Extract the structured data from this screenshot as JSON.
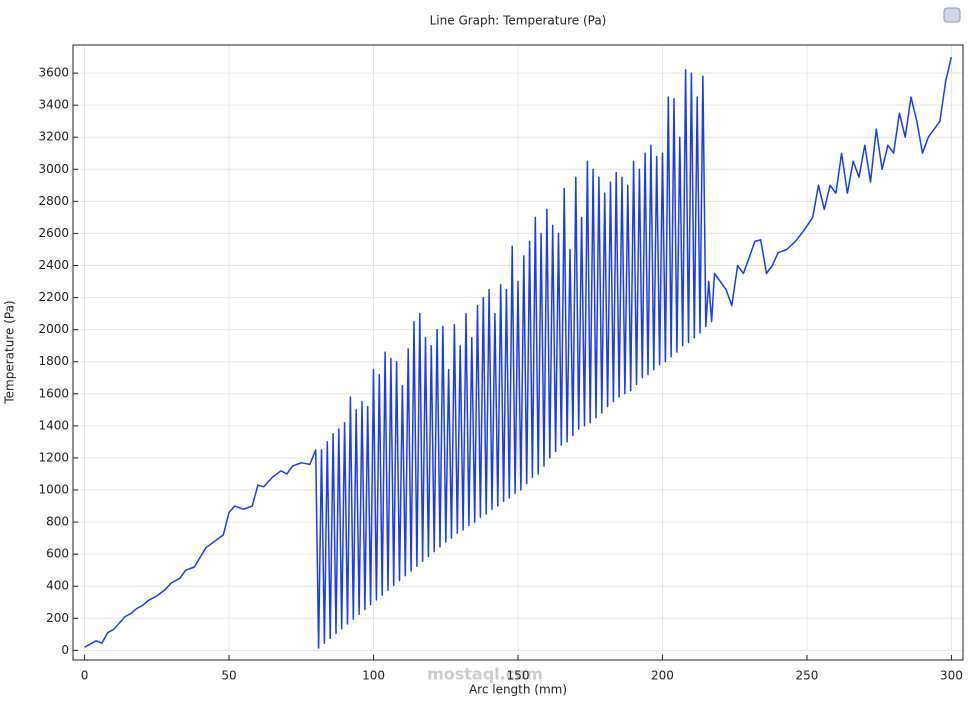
{
  "chart_data": {
    "type": "line",
    "title": "Line Graph: Temperature (Pa)",
    "x_label": "Arc length (mm)",
    "y_label": "Temperature (Pa)",
    "watermark": "mostaql.com",
    "xlim": [
      -4,
      304
    ],
    "ylim": [
      -60,
      3775
    ],
    "xticks": [
      0,
      50,
      100,
      150,
      200,
      250,
      300
    ],
    "yticks": [
      0,
      200,
      400,
      600,
      800,
      1000,
      1200,
      1400,
      1600,
      1800,
      2000,
      2200,
      2400,
      2600,
      2800,
      3000,
      3200,
      3400,
      3600
    ],
    "grid": true,
    "series": [
      {
        "color": "#1a3cf0",
        "x": [
          0,
          2,
          4,
          6,
          8,
          10,
          12,
          14,
          16,
          18,
          20,
          22,
          25,
          28,
          30,
          33,
          35,
          38,
          40,
          42,
          45,
          48,
          50,
          52,
          55,
          58,
          60,
          62,
          65,
          68,
          70,
          72,
          75,
          78,
          80,
          81,
          82,
          83,
          84,
          85,
          86,
          87,
          88,
          89,
          90,
          91,
          92,
          93,
          94,
          95,
          96,
          97,
          98,
          99,
          100,
          101,
          102,
          103,
          104,
          105,
          106,
          107,
          108,
          109,
          110,
          111,
          112,
          113,
          114,
          115,
          116,
          117,
          118,
          119,
          120,
          121,
          122,
          123,
          124,
          125,
          126,
          127,
          128,
          129,
          130,
          131,
          132,
          133,
          134,
          135,
          136,
          137,
          138,
          139,
          140,
          141,
          142,
          143,
          144,
          145,
          146,
          147,
          148,
          149,
          150,
          151,
          152,
          153,
          154,
          155,
          156,
          157,
          158,
          159,
          160,
          161,
          162,
          163,
          164,
          165,
          166,
          167,
          168,
          169,
          170,
          171,
          172,
          173,
          174,
          175,
          176,
          177,
          178,
          179,
          180,
          181,
          182,
          183,
          184,
          185,
          186,
          187,
          188,
          189,
          190,
          191,
          192,
          193,
          194,
          195,
          196,
          197,
          198,
          199,
          200,
          201,
          202,
          203,
          204,
          205,
          206,
          207,
          208,
          209,
          210,
          211,
          212,
          213,
          214,
          215,
          216,
          217,
          218,
          220,
          222,
          224,
          226,
          228,
          230,
          232,
          234,
          236,
          238,
          240,
          243,
          246,
          249,
          252,
          254,
          256,
          258,
          260,
          262,
          264,
          266,
          268,
          270,
          272,
          274,
          276,
          278,
          280,
          282,
          284,
          286,
          288,
          290,
          292,
          294,
          296,
          298,
          300
        ],
        "values": [
          20,
          40,
          60,
          45,
          110,
          130,
          170,
          210,
          230,
          260,
          280,
          310,
          340,
          380,
          420,
          450,
          500,
          520,
          580,
          640,
          680,
          720,
          860,
          900,
          880,
          900,
          1030,
          1020,
          1080,
          1120,
          1100,
          1150,
          1170,
          1160,
          1250,
          15,
          1250,
          45,
          1300,
          75,
          1350,
          105,
          1380,
          135,
          1420,
          165,
          1580,
          195,
          1500,
          225,
          1550,
          255,
          1520,
          285,
          1750,
          315,
          1720,
          345,
          1860,
          375,
          1820,
          405,
          1800,
          435,
          1650,
          465,
          1880,
          495,
          2050,
          525,
          2100,
          555,
          1950,
          585,
          1900,
          615,
          2000,
          645,
          2020,
          675,
          1750,
          700,
          2030,
          730,
          1900,
          750,
          2100,
          780,
          1950,
          800,
          2150,
          830,
          2200,
          850,
          2250,
          880,
          2100,
          900,
          2280,
          930,
          2250,
          950,
          2520,
          980,
          2300,
          1000,
          2460,
          1040,
          2550,
          1080,
          2700,
          1100,
          2600,
          1150,
          2750,
          1200,
          2650,
          1240,
          2600,
          1280,
          2880,
          1300,
          2500,
          1340,
          2950,
          1380,
          2700,
          1400,
          3050,
          1420,
          3000,
          1450,
          2950,
          1480,
          2850,
          1520,
          2920,
          1550,
          2980,
          1580,
          2950,
          1600,
          2900,
          1620,
          3050,
          1660,
          3000,
          1700,
          3100,
          1720,
          3150,
          1750,
          3080,
          1780,
          3100,
          1800,
          3450,
          1830,
          3440,
          1860,
          3200,
          1900,
          3620,
          1920,
          3600,
          1950,
          3450,
          1980,
          3580,
          2020,
          2300,
          2050,
          2350,
          2300,
          2250,
          2150,
          2400,
          2350,
          2450,
          2550,
          2560,
          2350,
          2400,
          2480,
          2500,
          2550,
          2620,
          2700,
          2900,
          2750,
          2900,
          2850,
          3100,
          2850,
          3050,
          2950,
          3150,
          2920,
          3250,
          3000,
          3150,
          3100,
          3350,
          3200,
          3450,
          3300,
          3100,
          3200,
          3250,
          3300,
          3550,
          3700
        ]
      }
    ]
  }
}
